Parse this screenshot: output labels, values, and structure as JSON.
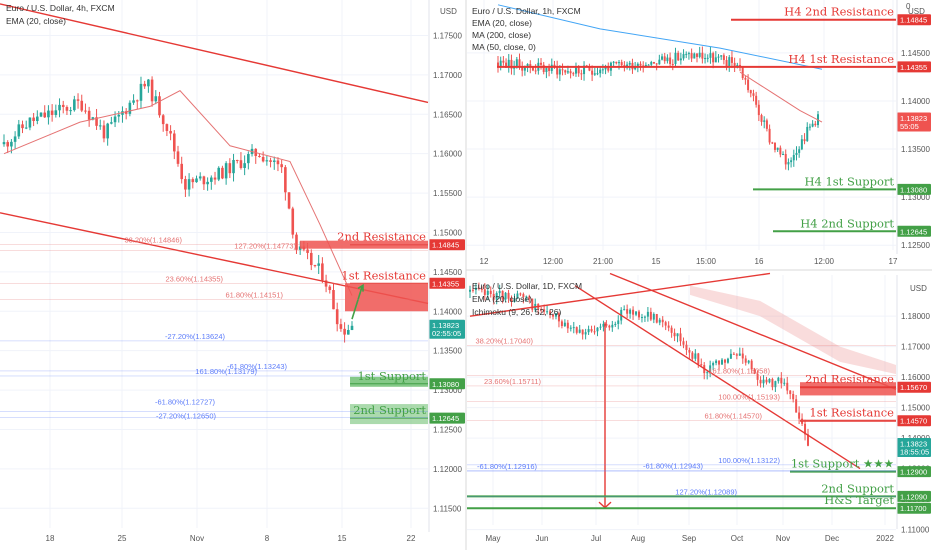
{
  "chart_data": [
    {
      "type": "candlestick",
      "symbol_title": "Euro / U.S. Dollar, 4h, FXCM",
      "indicator_label": "EMA (20, close)",
      "currency": "USD",
      "ylim": [
        1.1125,
        1.1795
      ],
      "y_ticks": [
        "1.17500",
        "1.17000",
        "1.16500",
        "1.16000",
        "1.15500",
        "1.15000",
        "1.14500",
        "1.14000",
        "1.13500",
        "1.13000",
        "1.12500",
        "1.12000",
        "1.11500"
      ],
      "x_ticks": [
        "18",
        "25",
        "Nov",
        "8",
        "15",
        "22"
      ],
      "price_tags": [
        {
          "label": "1.14845",
          "value": 1.14845,
          "color": "#e53935"
        },
        {
          "label": "1.14355",
          "value": 1.14355,
          "color": "#e53935"
        },
        {
          "label": "1.13823",
          "sublabel": "02:55:05",
          "value": 1.13823,
          "color": "#26a69a"
        },
        {
          "label": "1.13080",
          "value": 1.1308,
          "color": "#43a047"
        },
        {
          "label": "1.12645",
          "value": 1.12645,
          "color": "#43a047"
        }
      ],
      "levels": [
        {
          "label": "2nd Resistance",
          "value": 1.14845,
          "color": "#e53935"
        },
        {
          "label": "1st Resistance",
          "value": 1.14355,
          "color": "#e53935"
        },
        {
          "label": "1st Support",
          "value": 1.1308,
          "color": "#43a047"
        },
        {
          "label": "2nd Support",
          "value": 1.12645,
          "color": "#43a047"
        }
      ],
      "fib_labels": [
        {
          "label": "38.20%(1.14846)",
          "value": 1.14846,
          "color": "#e57373"
        },
        {
          "label": "127.20%(1.14773)",
          "value": 1.14773,
          "color": "#e57373"
        },
        {
          "label": "23.60%(1.14355)",
          "value": 1.14355,
          "color": "#e57373"
        },
        {
          "label": "61.80%(1.14151)",
          "value": 1.14151,
          "color": "#e57373"
        },
        {
          "label": "-27.20%(1.13624)",
          "value": 1.13624,
          "color": "#5c7cfa"
        },
        {
          "label": "-61.80%(1.13243)",
          "value": 1.13243,
          "color": "#5c7cfa"
        },
        {
          "label": "161.80%(1.13179)",
          "value": 1.13179,
          "color": "#5c7cfa"
        },
        {
          "label": "-61.80%(1.12727)",
          "value": 1.12727,
          "color": "#5c7cfa"
        },
        {
          "label": "-27.20%(1.12650)",
          "value": 1.1265,
          "color": "#5c7cfa"
        }
      ]
    },
    {
      "type": "candlestick",
      "symbol_title": "Euro / U.S. Dollar, 1h, FXCM",
      "indicator_labels": [
        "EMA (20, close)",
        "MA (200, close)",
        "MA (50, close, 0)"
      ],
      "currency": "USD",
      "currency_suffix": "0",
      "ylim": [
        1.1245,
        1.1505
      ],
      "y_ticks": [
        "1.14500",
        "1.14000",
        "1.13500",
        "1.13000",
        "1.12500"
      ],
      "x_ticks": [
        "12",
        "12:00",
        "21:00",
        "15",
        "15:00",
        "16",
        "12:00",
        "17"
      ],
      "price_tags": [
        {
          "label": "1.14845",
          "value": 1.14845,
          "color": "#e53935"
        },
        {
          "label": "1.14355",
          "value": 1.14355,
          "color": "#e53935"
        },
        {
          "label": "1.13823",
          "sublabel": "55:05",
          "value": 1.13823,
          "color": "#ef5350"
        },
        {
          "label": "1.13080",
          "value": 1.1308,
          "color": "#43a047"
        },
        {
          "label": "1.12645",
          "value": 1.12645,
          "color": "#43a047"
        }
      ],
      "levels": [
        {
          "label": "H4 2nd Resistance",
          "value": 1.14845,
          "color": "#e53935"
        },
        {
          "label": "H4 1st Resistance",
          "value": 1.14355,
          "color": "#e53935"
        },
        {
          "label": "H4 1st Support",
          "value": 1.1308,
          "color": "#43a047"
        },
        {
          "label": "H4 2nd Support",
          "value": 1.12645,
          "color": "#43a047"
        }
      ]
    },
    {
      "type": "candlestick",
      "symbol_title": "Euro / U.S. Dollar, 1D, FXCM",
      "indicator_labels": [
        "EMA (20, close)",
        "Ichimoku (9, 26, 52, 26)"
      ],
      "currency": "USD",
      "ylim": [
        1.1115,
        1.1935
      ],
      "y_ticks": [
        "1.18000",
        "1.17000",
        "1.16000",
        "1.15000",
        "1.14000",
        "1.13000",
        "1.12000",
        "1.11000"
      ],
      "x_ticks": [
        "May",
        "Jun",
        "Jul",
        "Aug",
        "Sep",
        "Oct",
        "Nov",
        "Dec",
        "2022"
      ],
      "price_tags": [
        {
          "label": "1.15670",
          "value": 1.1567,
          "color": "#e53935"
        },
        {
          "label": "1.14570",
          "value": 1.1457,
          "color": "#e53935"
        },
        {
          "label": "1.13823",
          "sublabel": "18:55:05",
          "value": 1.13823,
          "color": "#26a69a"
        },
        {
          "label": "1.12900",
          "value": 1.129,
          "color": "#43a047"
        },
        {
          "label": "1.12090",
          "value": 1.1209,
          "color": "#43a047"
        },
        {
          "label": "1.11700",
          "value": 1.117,
          "color": "#43a047"
        }
      ],
      "levels": [
        {
          "label": "2nd Resistance",
          "value": 1.1567,
          "color": "#e53935"
        },
        {
          "label": "1st Resistance",
          "value": 1.1457,
          "color": "#e53935"
        },
        {
          "label": "1st Support ★★★",
          "value": 1.129,
          "color": "#43a047"
        },
        {
          "label": "2nd Support",
          "value": 1.1209,
          "color": "#43a047"
        },
        {
          "label": "H&S Target",
          "value": 1.117,
          "color": "#43a047"
        }
      ],
      "fib_labels": [
        {
          "label": "38.20%(1.17040)",
          "value": 1.1704,
          "color": "#e57373"
        },
        {
          "label": "23.60%(1.15711)",
          "value": 1.15711,
          "color": "#e57373"
        },
        {
          "label": "161.80%(1.16058)",
          "value": 1.16058,
          "color": "#e57373"
        },
        {
          "label": "100.00%(1.15193)",
          "value": 1.15193,
          "color": "#e57373"
        },
        {
          "label": "61.80%(1.14570)",
          "value": 1.1457,
          "color": "#e57373"
        },
        {
          "label": "-61.80%(1.12916)",
          "value": 1.12916,
          "color": "#5c7cfa"
        },
        {
          "label": "-61.80%(1.12943)",
          "value": 1.12943,
          "color": "#5c7cfa"
        },
        {
          "label": "100.00%(1.13122)",
          "value": 1.13122,
          "color": "#5c7cfa"
        },
        {
          "label": "127.20%(1.12089)",
          "value": 1.12089,
          "color": "#5c7cfa"
        }
      ]
    }
  ]
}
